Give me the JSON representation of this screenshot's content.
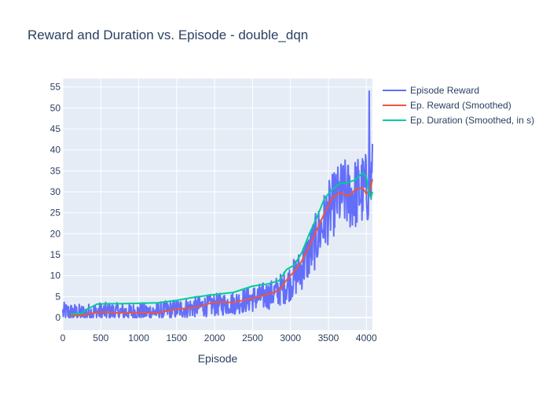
{
  "chart_data": {
    "type": "line",
    "title": "Reward and Duration vs. Episode - double_dqn",
    "xlabel": "Episode",
    "ylabel": "",
    "xlim": [
      0,
      4080
    ],
    "ylim": [
      -3,
      57
    ],
    "x_ticks": [
      0,
      500,
      1000,
      1500,
      2000,
      2500,
      3000,
      3500,
      4000
    ],
    "y_ticks": [
      0,
      5,
      10,
      15,
      20,
      25,
      30,
      35,
      40,
      45,
      50,
      55
    ],
    "grid": true,
    "legend_position": "top-right",
    "series": [
      {
        "name": "Episode Reward",
        "color": "#636efa",
        "style": "noisy",
        "x": [
          0,
          250,
          500,
          750,
          1000,
          1250,
          1500,
          1750,
          2000,
          2250,
          2500,
          2750,
          2900,
          3000,
          3100,
          3200,
          3300,
          3400,
          3500,
          3600,
          3700,
          3800,
          3900,
          4000,
          4080
        ],
        "y": [
          1.2,
          1.0,
          1.4,
          1.3,
          1.3,
          1.4,
          2.0,
          2.5,
          3.0,
          3.5,
          4.5,
          5.5,
          7.0,
          8.5,
          10.5,
          13.5,
          17.0,
          21.0,
          25.0,
          28.0,
          29.5,
          29.0,
          30.0,
          30.5,
          33.0
        ],
        "spread": [
          2.5,
          2.2,
          2.3,
          2.2,
          2.2,
          2.3,
          2.4,
          2.5,
          2.7,
          2.8,
          3.2,
          3.5,
          4.0,
          4.5,
          5.0,
          6.0,
          6.5,
          7.0,
          7.5,
          8.0,
          8.5,
          8.5,
          9.0,
          9.0,
          9.5
        ],
        "max_value": 54,
        "max_at": 4040
      },
      {
        "name": "Ep. Reward (Smoothed)",
        "color": "#ef553b",
        "style": "line",
        "x": [
          100,
          250,
          350,
          500,
          750,
          1000,
          1250,
          1500,
          1750,
          2000,
          2250,
          2500,
          2750,
          2850,
          2950,
          3050,
          3150,
          3250,
          3350,
          3450,
          3550,
          3650,
          3750,
          3800,
          3850,
          3950,
          4000,
          4050,
          4080
        ],
        "y": [
          0.5,
          0.5,
          0.9,
          1.3,
          1.1,
          1.2,
          1.1,
          2.0,
          2.4,
          3.7,
          3.6,
          4.6,
          5.8,
          6.5,
          9.0,
          11.0,
          13.5,
          17.0,
          21.0,
          25.0,
          28.5,
          29.8,
          29.0,
          29.5,
          30.5,
          31.0,
          29.5,
          30.5,
          33.0
        ]
      },
      {
        "name": "Ep. Duration (Smoothed, in s)",
        "color": "#00cc96",
        "style": "line",
        "x": [
          100,
          250,
          300,
          450,
          600,
          750,
          1000,
          1250,
          1500,
          1750,
          2000,
          2250,
          2500,
          2700,
          2850,
          2950,
          3050,
          3150,
          3250,
          3350,
          3450,
          3550,
          3650,
          3750,
          3850,
          3950,
          4000,
          4030,
          4060,
          4080
        ],
        "y": [
          0.9,
          0.9,
          1.8,
          3.2,
          3.3,
          3.3,
          3.4,
          3.5,
          4.1,
          4.9,
          5.5,
          6.0,
          7.5,
          8.0,
          8.8,
          11.5,
          12.5,
          15.5,
          20.0,
          24.0,
          28.5,
          30.5,
          32.0,
          32.2,
          32.8,
          34.5,
          33.5,
          30.0,
          28.5,
          30.0
        ]
      }
    ]
  }
}
